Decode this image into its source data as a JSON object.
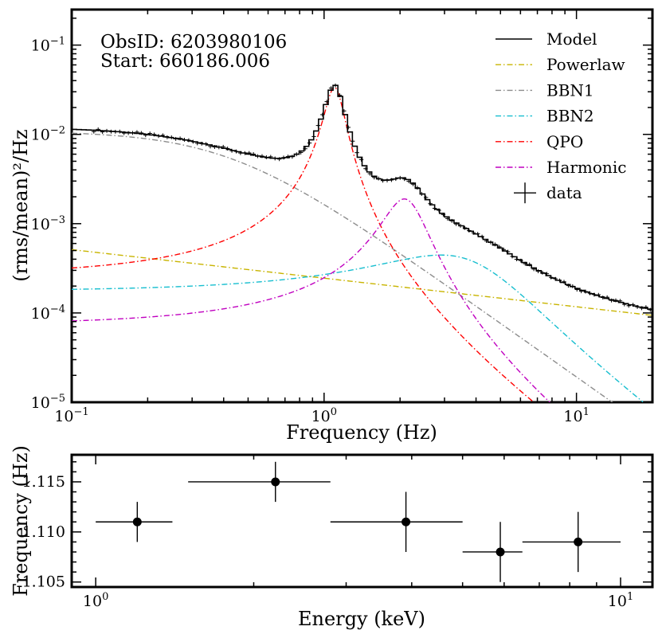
{
  "chart_data": [
    {
      "type": "line",
      "title": "",
      "xlabel": "Frequency (Hz)",
      "ylabel": "(rms/mean)²/Hz",
      "xscale": "log",
      "yscale": "log",
      "xlim": [
        0.1,
        20
      ],
      "ylim": [
        1e-05,
        0.25
      ],
      "grid": false,
      "legend": "top-right",
      "annotations": [
        "ObsID: 6203980106",
        "Start: 660186.006"
      ],
      "xticks": [
        {
          "value": 0.1,
          "base": "10",
          "exp": "−1"
        },
        {
          "value": 1,
          "base": "10",
          "exp": "0"
        },
        {
          "value": 10,
          "base": "10",
          "exp": "1"
        }
      ],
      "yticks": [
        {
          "value": 1e-05,
          "base": "10",
          "exp": "−5"
        },
        {
          "value": 0.0001,
          "base": "10",
          "exp": "−4"
        },
        {
          "value": 0.001,
          "base": "10",
          "exp": "−3"
        },
        {
          "value": 0.01,
          "base": "10",
          "exp": "−2"
        },
        {
          "value": 0.1,
          "base": "10",
          "exp": "−1"
        }
      ],
      "components": [
        {
          "name": "Powerlaw",
          "kind": "powerlaw",
          "norm": 0.000245,
          "index": 0.32,
          "color": "#c8b400"
        },
        {
          "name": "BBN1",
          "kind": "lorentzian",
          "norm": 0.0109,
          "center": 0.0,
          "width": 0.42,
          "color": "#8c8c8c"
        },
        {
          "name": "BBN2",
          "kind": "lorentzian",
          "norm": 0.000445,
          "center": 2.9,
          "width": 2.35,
          "color": "#17becf"
        },
        {
          "name": "QPO",
          "kind": "lorentzian",
          "norm": 0.0335,
          "center": 1.1,
          "width": 0.098,
          "color": "#ff0000"
        },
        {
          "name": "Harmonic",
          "kind": "lorentzian",
          "norm": 0.00189,
          "center": 2.08,
          "width": 0.42,
          "color": "#c000c0"
        }
      ],
      "series": [
        {
          "name": "Model",
          "kind": "step",
          "color": "#000000",
          "x_start": 0.1,
          "x_end": 20,
          "bins": 120
        },
        {
          "name": "data",
          "kind": "errorbar",
          "color": "#000000",
          "x_start": 0.12,
          "x_end": 20,
          "points": 130,
          "scatter": 0.035
        }
      ],
      "legend_entries": [
        {
          "label": "Model",
          "style": "solid",
          "color": "#000000"
        },
        {
          "label": "Powerlaw",
          "style": "dashdot",
          "color": "#c8b400"
        },
        {
          "label": "BBN1",
          "style": "dashdot",
          "color": "#8c8c8c"
        },
        {
          "label": "BBN2",
          "style": "dashdot",
          "color": "#17becf"
        },
        {
          "label": "QPO",
          "style": "dashdot",
          "color": "#ff0000"
        },
        {
          "label": "Harmonic",
          "style": "dashdot",
          "color": "#c000c0"
        },
        {
          "label": "data",
          "style": "cross",
          "color": "#000000"
        }
      ]
    },
    {
      "type": "scatter",
      "title": "",
      "xlabel": "Energy (keV)",
      "ylabel": "Frequency (Hz)",
      "xscale": "log",
      "xlim": [
        0.9,
        11.5
      ],
      "ylim": [
        1.1045,
        1.1177
      ],
      "grid": false,
      "xticks": [
        {
          "value": 1,
          "base": "10",
          "exp": "0"
        },
        {
          "value": 10,
          "base": "10",
          "exp": "1"
        }
      ],
      "yticks": [
        {
          "value": 1.105,
          "label": "1.105"
        },
        {
          "value": 1.11,
          "label": "1.110"
        },
        {
          "value": 1.115,
          "label": "1.115"
        }
      ],
      "points": [
        {
          "x": 1.2,
          "y": 1.111,
          "xlo": 1.0,
          "xhi": 1.4,
          "ylo": 1.109,
          "yhi": 1.113
        },
        {
          "x": 2.2,
          "y": 1.115,
          "xlo": 1.5,
          "xhi": 2.8,
          "ylo": 1.113,
          "yhi": 1.117
        },
        {
          "x": 3.9,
          "y": 1.111,
          "xlo": 2.8,
          "xhi": 5.0,
          "ylo": 1.108,
          "yhi": 1.114
        },
        {
          "x": 5.9,
          "y": 1.108,
          "xlo": 5.0,
          "xhi": 6.5,
          "ylo": 1.105,
          "yhi": 1.111
        },
        {
          "x": 8.3,
          "y": 1.109,
          "xlo": 6.5,
          "xhi": 10.0,
          "ylo": 1.106,
          "yhi": 1.112
        }
      ]
    }
  ]
}
